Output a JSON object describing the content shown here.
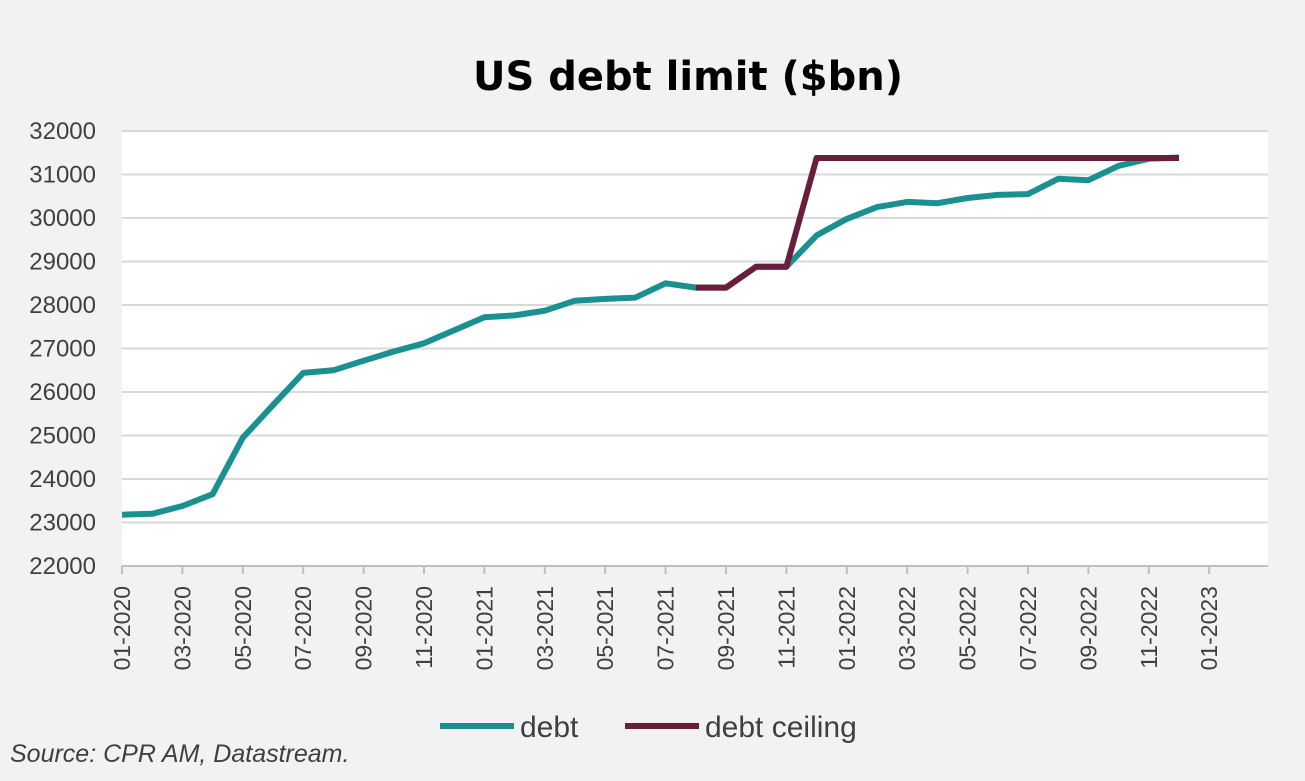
{
  "chart_data": {
    "type": "line",
    "title": "US debt limit ($bn)",
    "ylim": [
      22000,
      32000
    ],
    "yticks": [
      "32000",
      "31000",
      "30000",
      "29000",
      "28000",
      "27000",
      "26000",
      "25000",
      "24000",
      "23000",
      "22000"
    ],
    "xticks": [
      "01-2020",
      "03-2020",
      "05-2020",
      "07-2020",
      "09-2020",
      "11-2020",
      "01-2021",
      "03-2021",
      "05-2021",
      "07-2021",
      "09-2021",
      "11-2021",
      "01-2022",
      "03-2022",
      "05-2022",
      "07-2022",
      "09-2022",
      "11-2022",
      "01-2023"
    ],
    "grid": true,
    "legend_position": "bottom",
    "series": [
      {
        "name": "debt",
        "color": "#1a9090",
        "x": [
          "2020-01",
          "2020-02",
          "2020-03",
          "2020-04",
          "2020-05",
          "2020-06",
          "2020-07",
          "2020-08",
          "2020-09",
          "2020-10",
          "2020-11",
          "2020-12",
          "2021-01",
          "2021-02",
          "2021-03",
          "2021-04",
          "2021-05",
          "2021-06",
          "2021-07",
          "2021-08",
          "2021-09",
          "2021-10",
          "2021-11",
          "2021-12",
          "2022-01",
          "2022-02",
          "2022-03",
          "2022-04",
          "2022-05",
          "2022-06",
          "2022-07",
          "2022-08",
          "2022-09",
          "2022-10",
          "2022-11",
          "2022-12"
        ],
        "values": [
          23180,
          23200,
          23380,
          23650,
          24950,
          25700,
          26440,
          26500,
          26720,
          26930,
          27120,
          27420,
          27720,
          27760,
          27870,
          28100,
          28140,
          28170,
          28500,
          28400,
          28400,
          28880,
          28880,
          29600,
          29980,
          30250,
          30370,
          30340,
          30460,
          30530,
          30550,
          30900,
          30870,
          31200,
          31360,
          31390
        ]
      },
      {
        "name": "debt ceiling",
        "color": "#6b1d3d",
        "x": [
          "2021-08",
          "2021-09",
          "2021-10",
          "2021-11",
          "2021-12",
          "2022-01",
          "2022-02",
          "2022-03",
          "2022-04",
          "2022-05",
          "2022-06",
          "2022-07",
          "2022-08",
          "2022-09",
          "2022-10",
          "2022-11",
          "2022-12"
        ],
        "values": [
          28400,
          28400,
          28880,
          28880,
          31380,
          31380,
          31380,
          31380,
          31380,
          31380,
          31380,
          31380,
          31380,
          31380,
          31380,
          31380,
          31380
        ]
      }
    ]
  },
  "source": "Source: CPR AM, Datastream."
}
